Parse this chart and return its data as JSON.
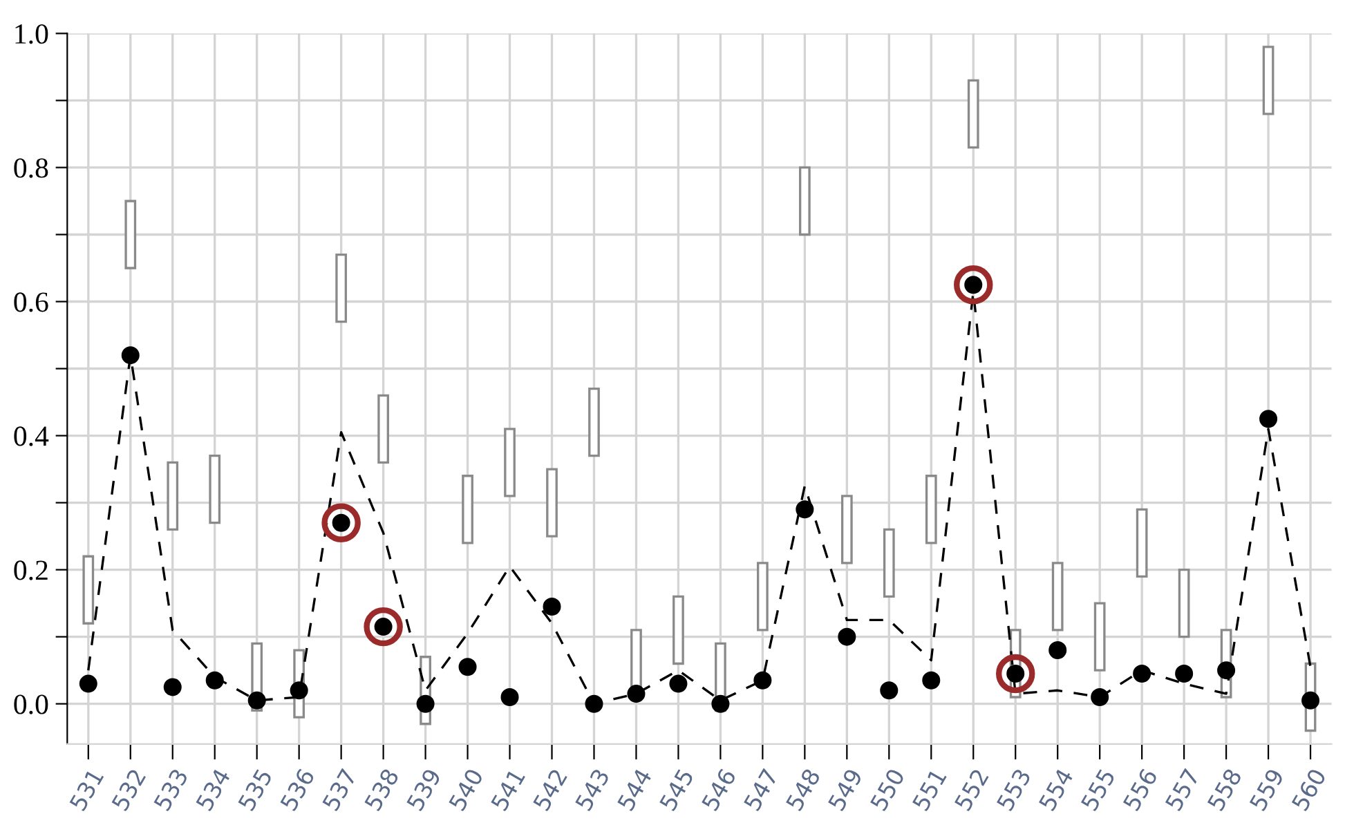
{
  "chart_data": {
    "type": "bar",
    "categories": [
      "531",
      "532",
      "533",
      "534",
      "535",
      "536",
      "537",
      "538",
      "539",
      "540",
      "541",
      "542",
      "543",
      "544",
      "545",
      "546",
      "547",
      "548",
      "549",
      "550",
      "551",
      "552",
      "553",
      "554",
      "555",
      "556",
      "557",
      "558",
      "559",
      "560"
    ],
    "ylim": [
      -0.06,
      1.0
    ],
    "yticks": [
      {
        "value": 0.0,
        "label": "0.0"
      },
      {
        "value": 0.1,
        "label": null
      },
      0.2,
      {
        "value": 0.3,
        "label": null
      },
      0.4,
      {
        "value": 0.5,
        "label": null
      },
      0.6,
      {
        "value": 0.7,
        "label": null
      },
      0.8,
      {
        "value": 0.9,
        "label": null
      },
      {
        "value": 1.0,
        "label": "1.0"
      }
    ],
    "grid": true,
    "series": [
      {
        "color": "#ffffff",
        "base": [
          0.12,
          0.65,
          0.26,
          0.27,
          -0.01,
          -0.02,
          0.57,
          0.36,
          -0.03,
          0.24,
          0.31,
          0.25,
          0.37,
          0.01,
          0.06,
          -0.01,
          0.11,
          0.7,
          0.21,
          0.16,
          0.24,
          0.83,
          0.01,
          0.11,
          0.05,
          0.19,
          0.1,
          0.01,
          0.88,
          -0.04
        ],
        "values": [
          0.1,
          0.1,
          0.1,
          0.1,
          0.1,
          0.1,
          0.1,
          0.1,
          0.1,
          0.1,
          0.1,
          0.1,
          0.1,
          0.1,
          0.1,
          0.1,
          0.1,
          0.1,
          0.1,
          0.1,
          0.1,
          0.1,
          0.1,
          0.1,
          0.1,
          0.1,
          0.1,
          0.1,
          0.1,
          0.1
        ]
      },
      {
        "type": "line",
        "color": "#000000",
        "line_style": "dashed",
        "marker": "none",
        "values": [
          0.05,
          0.52,
          0.11,
          0.04,
          0.005,
          0.01,
          0.405,
          0.255,
          0.02,
          0.105,
          0.205,
          0.12,
          0.0,
          0.015,
          0.05,
          0.005,
          0.035,
          0.325,
          0.125,
          0.125,
          0.065,
          0.615,
          0.015,
          0.02,
          0.01,
          0.05,
          0.03,
          0.015,
          0.41,
          0.055
        ]
      },
      {
        "type": "scatter",
        "color": "#000000",
        "marker": "circle",
        "values": [
          0.03,
          0.52,
          0.025,
          0.035,
          0.005,
          0.02,
          0.27,
          0.115,
          0.0,
          0.055,
          0.01,
          0.145,
          0.0,
          0.015,
          0.03,
          0.0,
          0.035,
          0.29,
          0.1,
          0.02,
          0.035,
          0.625,
          0.045,
          0.08,
          0.01,
          0.045,
          0.045,
          0.05,
          0.425,
          0.005
        ]
      },
      {
        "type": "bubble",
        "color": "#9b2b2b",
        "values": [
          null,
          null,
          null,
          null,
          null,
          null,
          0.27,
          0.115,
          null,
          null,
          null,
          null,
          null,
          null,
          null,
          null,
          null,
          null,
          null,
          null,
          null,
          0.625,
          0.045,
          null,
          null,
          null,
          null,
          null,
          null,
          null
        ],
        "sizes": [
          null,
          null,
          null,
          null,
          null,
          null,
          1,
          1,
          null,
          null,
          null,
          null,
          null,
          null,
          null,
          null,
          null,
          null,
          null,
          null,
          null,
          1,
          1,
          null,
          null,
          null,
          null,
          null,
          null,
          null
        ]
      }
    ]
  }
}
